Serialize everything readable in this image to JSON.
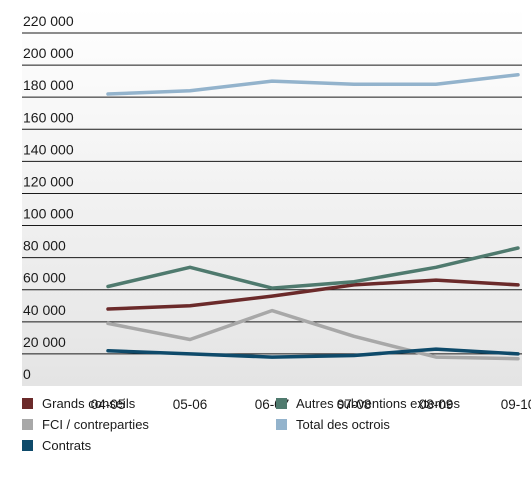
{
  "chart_data": {
    "type": "line",
    "categories": [
      "04-05",
      "05-06",
      "06-07",
      "07-08",
      "08-09",
      "09-10"
    ],
    "ylim": [
      0,
      220000
    ],
    "y_ticks": [
      "0",
      "20 000",
      "40 000",
      "60 000",
      "80 000",
      "100 000",
      "120 000",
      "140 000",
      "160 000",
      "180 000",
      "200 000",
      "220 000"
    ],
    "grid": true,
    "legend_position": "bottom",
    "series": [
      {
        "name": "Grands conseils",
        "color": "#6b2a2a",
        "values": [
          48000,
          50000,
          56000,
          63000,
          66000,
          63000
        ]
      },
      {
        "name": "Autres subventions externes",
        "color": "#4f7a6e",
        "values": [
          62000,
          74000,
          61000,
          65000,
          74000,
          86000
        ]
      },
      {
        "name": "FCI / contreparties",
        "color": "#a8a8a8",
        "values": [
          39000,
          29000,
          47000,
          31000,
          18000,
          17000
        ]
      },
      {
        "name": "Total des octrois",
        "color": "#93b3cc",
        "values": [
          182000,
          184000,
          190000,
          188000,
          188000,
          194000
        ]
      },
      {
        "name": "Contrats",
        "color": "#0e4a6a",
        "values": [
          22000,
          20000,
          18000,
          19000,
          23000,
          20000
        ]
      }
    ]
  }
}
